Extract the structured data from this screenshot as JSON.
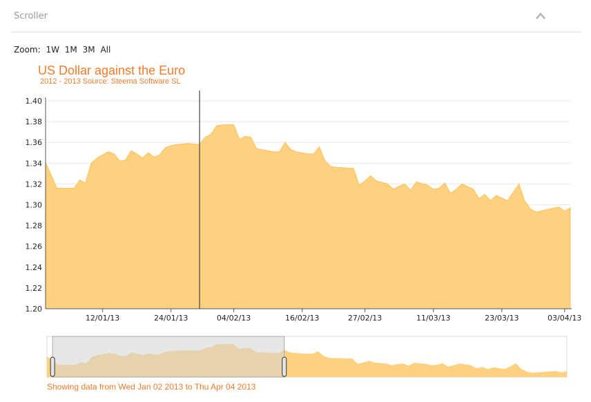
{
  "panel": {
    "title": "Scroller"
  },
  "zoom": {
    "label": "Zoom:",
    "buttons": [
      "1W",
      "1M",
      "3M",
      "All"
    ]
  },
  "status_text": "Showing data from Wed Jan 02 2013 to Thu Apr 04 2013",
  "colors": {
    "area_fill": "#fdd17f",
    "area_stroke": "#f9c25a",
    "title": "#f07b2a",
    "grid": "#e8e8e8",
    "selection": "#d3d3d3"
  },
  "chart_data": {
    "type": "area",
    "title": "US Dollar against the Euro",
    "subtitle": "2012 - 2013 Source: Steema Software SL",
    "xlim": [
      "2013-01-02",
      "2013-04-04"
    ],
    "ylim": [
      1.2,
      1.4
    ],
    "yticks": [
      1.2,
      1.22,
      1.24,
      1.26,
      1.28,
      1.3,
      1.32,
      1.34,
      1.36,
      1.38,
      1.4
    ],
    "yticklabels": [
      "1.20",
      "1.22",
      "1.24",
      "1.26",
      "1.28",
      "1.30",
      "1.32",
      "1.34",
      "1.36",
      "1.38",
      "1.40"
    ],
    "xticks": [
      "2013-01-12",
      "2013-01-24",
      "2013-02-04",
      "2013-02-16",
      "2013-02-27",
      "2013-03-11",
      "2013-03-23",
      "2013-04-03"
    ],
    "xticklabels": [
      "12/01/13",
      "24/01/13",
      "04/02/13",
      "16/02/13",
      "27/02/13",
      "11/03/13",
      "23/03/13",
      "03/04/13"
    ],
    "grid": true,
    "cursor_date": "2013-01-29",
    "series": [
      {
        "x": [
          "2013-01-02",
          "2013-01-04",
          "2013-01-07",
          "2013-01-08",
          "2013-01-09",
          "2013-01-10",
          "2013-01-11",
          "2013-01-13",
          "2013-01-14",
          "2013-01-15",
          "2013-01-16",
          "2013-01-17",
          "2013-01-18",
          "2013-01-19",
          "2013-01-20",
          "2013-01-21",
          "2013-01-22",
          "2013-01-23",
          "2013-01-24",
          "2013-01-25",
          "2013-01-27",
          "2013-01-29",
          "2013-01-30",
          "2013-01-31",
          "2013-02-01",
          "2013-02-02",
          "2013-02-04",
          "2013-02-05",
          "2013-02-06",
          "2013-02-07",
          "2013-02-08",
          "2013-02-11",
          "2013-02-12",
          "2013-02-13",
          "2013-02-14",
          "2013-02-15",
          "2013-02-17",
          "2013-02-18",
          "2013-02-19",
          "2013-02-20",
          "2013-02-21",
          "2013-02-22",
          "2013-02-25",
          "2013-02-26",
          "2013-02-27",
          "2013-02-28",
          "2013-03-01",
          "2013-03-03",
          "2013-03-04",
          "2013-03-05",
          "2013-03-06",
          "2013-03-07",
          "2013-03-08",
          "2013-03-10",
          "2013-03-11",
          "2013-03-12",
          "2013-03-13",
          "2013-03-14",
          "2013-03-15",
          "2013-03-16",
          "2013-03-18",
          "2013-03-19",
          "2013-03-20",
          "2013-03-21",
          "2013-03-22",
          "2013-03-24",
          "2013-03-25",
          "2013-03-26",
          "2013-03-27",
          "2013-03-28",
          "2013-03-29",
          "2013-04-02",
          "2013-04-03",
          "2013-04-04"
        ],
        "values": [
          1.341,
          1.316,
          1.316,
          1.324,
          1.321,
          1.34,
          1.345,
          1.351,
          1.349,
          1.342,
          1.343,
          1.352,
          1.349,
          1.345,
          1.35,
          1.346,
          1.348,
          1.355,
          1.357,
          1.358,
          1.359,
          1.358,
          1.365,
          1.368,
          1.376,
          1.377,
          1.377,
          1.363,
          1.366,
          1.365,
          1.354,
          1.351,
          1.351,
          1.36,
          1.353,
          1.351,
          1.349,
          1.349,
          1.356,
          1.342,
          1.337,
          1.336,
          1.335,
          1.319,
          1.323,
          1.328,
          1.323,
          1.32,
          1.315,
          1.318,
          1.32,
          1.314,
          1.322,
          1.319,
          1.315,
          1.316,
          1.321,
          1.311,
          1.315,
          1.32,
          1.315,
          1.306,
          1.31,
          1.304,
          1.309,
          1.304,
          1.312,
          1.32,
          1.304,
          1.296,
          1.293,
          1.298,
          1.294,
          1.297
        ]
      }
    ],
    "navigator": {
      "selection_start": "2013-01-03",
      "selection_end": "2013-02-13"
    }
  }
}
